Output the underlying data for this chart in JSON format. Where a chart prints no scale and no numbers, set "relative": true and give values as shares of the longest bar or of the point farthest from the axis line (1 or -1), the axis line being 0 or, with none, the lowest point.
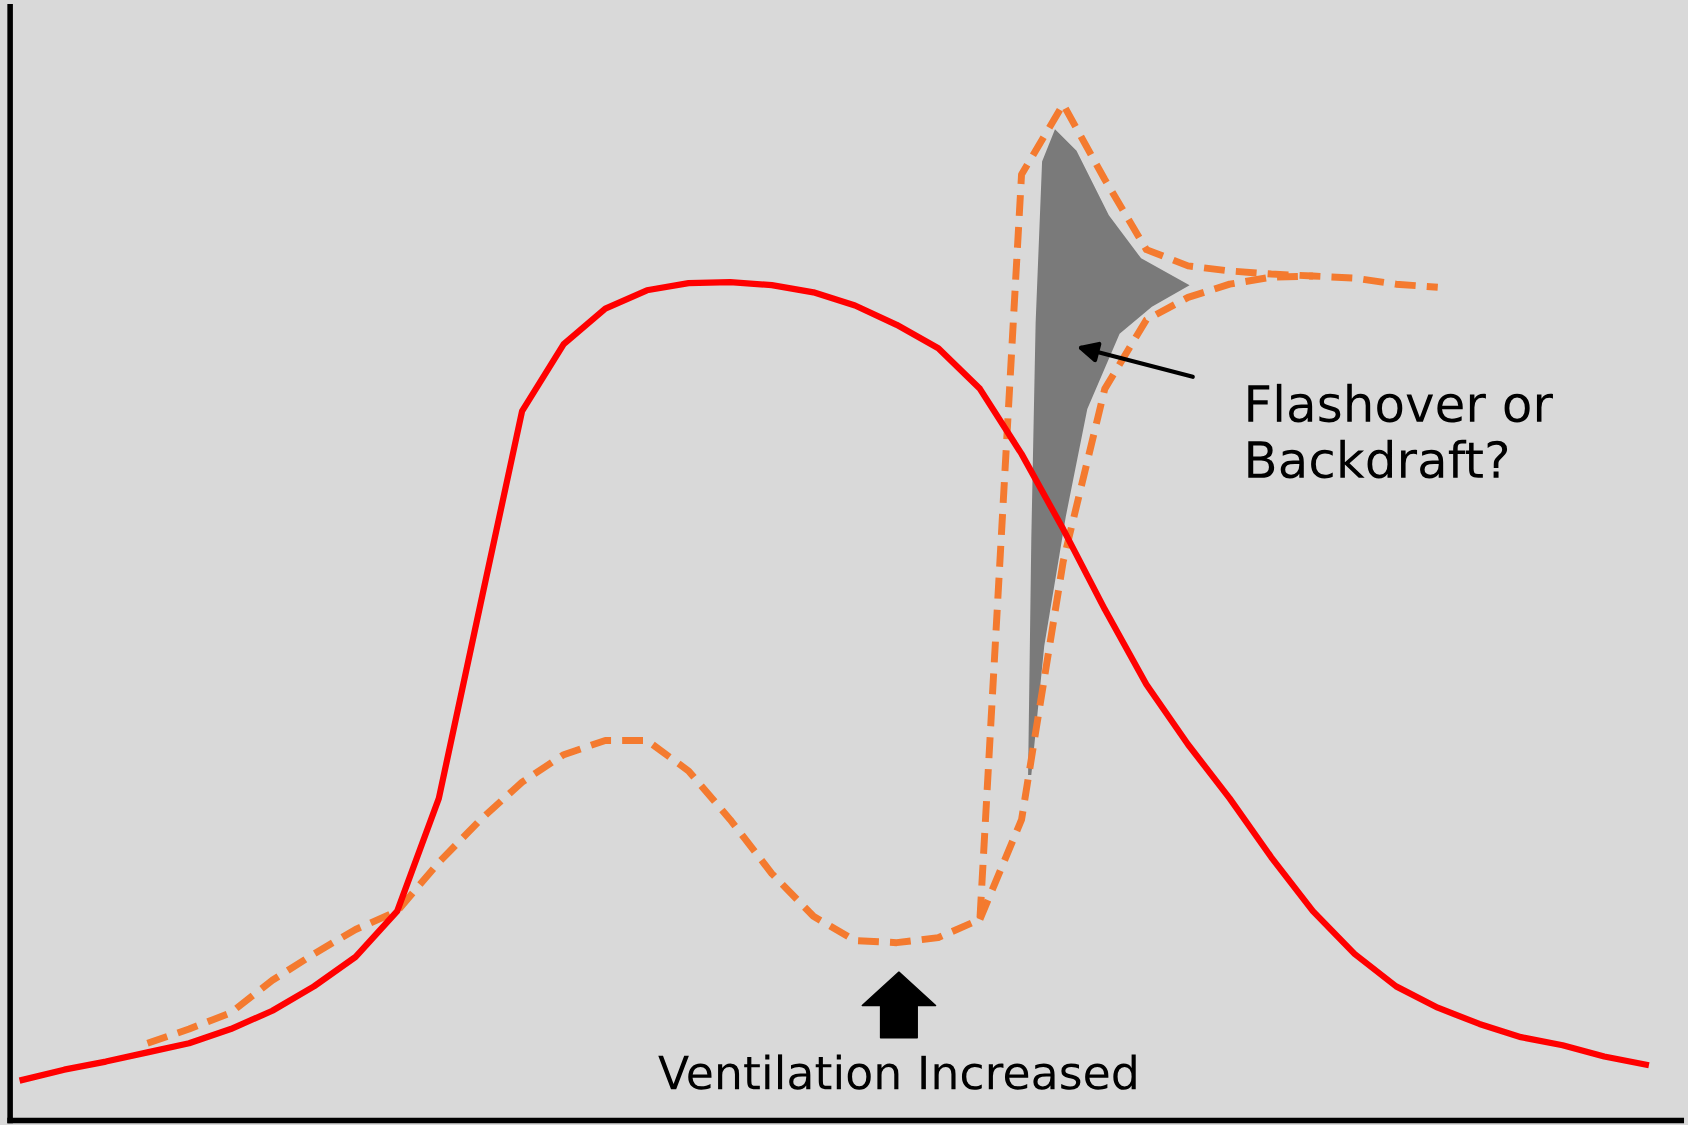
{
  "chart_data": {
    "type": "line",
    "relative": true,
    "annotations": [
      "Flashover or\nBackdraft?",
      "Ventilation Increased"
    ],
    "categories": [
      null,
      null,
      null,
      null,
      null,
      null,
      null,
      null,
      null,
      null,
      null,
      null,
      null,
      null,
      null,
      null,
      null,
      null,
      null,
      null,
      null,
      null,
      null,
      null,
      null,
      null,
      null,
      null,
      null,
      null,
      null,
      null,
      null,
      null,
      null,
      null,
      null,
      null,
      null,
      null
    ],
    "series": [
      {
        "color": "#ff0000",
        "line_style": "solid",
        "values": [
          0.04,
          0.05,
          0.058,
          0.067,
          0.076,
          0.09,
          0.108,
          0.132,
          0.161,
          0.206,
          0.317,
          0.508,
          0.698,
          0.764,
          0.799,
          0.817,
          0.824,
          0.825,
          0.822,
          0.815,
          0.802,
          0.783,
          0.76,
          0.72,
          0.656,
          0.582,
          0.503,
          0.429,
          0.37,
          0.317,
          0.259,
          0.206,
          0.164,
          0.132,
          0.111,
          0.095,
          0.082,
          0.074,
          0.063,
          0.055
        ]
      },
      {
        "color": "#f47a2f",
        "line_style": "dashed",
        "values": [
          null,
          null,
          null,
          0.076,
          0.09,
          0.106,
          0.138,
          0.164,
          0.188,
          0.206,
          0.254,
          0.296,
          0.333,
          0.36,
          0.374,
          0.374,
          0.344,
          0.296,
          0.243,
          0.201,
          0.177,
          0.175,
          0.18,
          0.198,
          0.931,
          1.0,
          0.926,
          0.857,
          0.841,
          0.836,
          0.833,
          0.831,
          0.829,
          0.823,
          0.82,
          null,
          null,
          null,
          null,
          null
        ]
      },
      {
        "color": "#f47a2f",
        "line_style": "dashed",
        "values": [
          null,
          null,
          null,
          null,
          null,
          null,
          null,
          null,
          null,
          null,
          null,
          null,
          null,
          null,
          null,
          null,
          null,
          null,
          null,
          null,
          null,
          null,
          null,
          0.198,
          0.296,
          0.55,
          0.72,
          0.788,
          0.81,
          0.823,
          0.83,
          0.831,
          null,
          null,
          null,
          null,
          null,
          null,
          null,
          null
        ]
      }
    ]
  }
}
